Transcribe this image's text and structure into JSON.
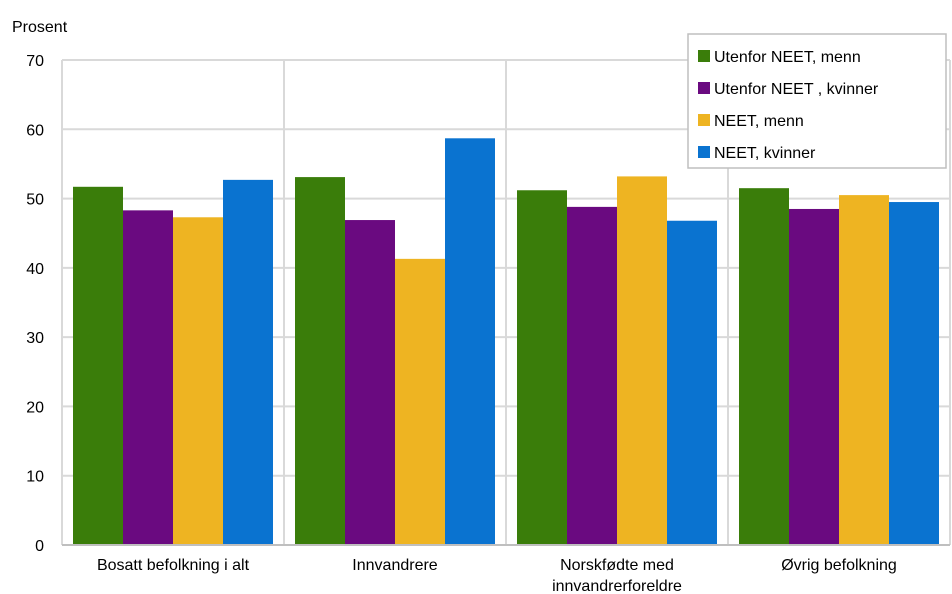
{
  "chart_data": {
    "type": "bar",
    "title": "",
    "ylabel": "Prosent",
    "xlabel": "",
    "ylim": [
      0,
      70
    ],
    "yticks": [
      0,
      10,
      20,
      30,
      40,
      50,
      60,
      70
    ],
    "grid": true,
    "legend_position": "top-right",
    "categories": [
      [
        "Bosatt befolkning i alt"
      ],
      [
        "Innvandrere"
      ],
      [
        "Norskfødte med",
        "innvandrerforeldre"
      ],
      [
        "Øvrig befolkning"
      ]
    ],
    "series": [
      {
        "name": "Utenfor NEET, menn",
        "color": "#3a7d0a",
        "values": [
          51.7,
          53.1,
          51.2,
          51.5
        ]
      },
      {
        "name": "Utenfor NEET , kvinner",
        "color": "#6a0a80",
        "values": [
          48.3,
          46.9,
          48.8,
          48.5
        ]
      },
      {
        "name": "NEET, menn",
        "color": "#eeb422",
        "values": [
          47.3,
          41.3,
          53.2,
          50.5
        ]
      },
      {
        "name": "NEET, kvinner",
        "color": "#0a73d0",
        "values": [
          52.7,
          58.7,
          46.8,
          49.5
        ]
      }
    ]
  }
}
